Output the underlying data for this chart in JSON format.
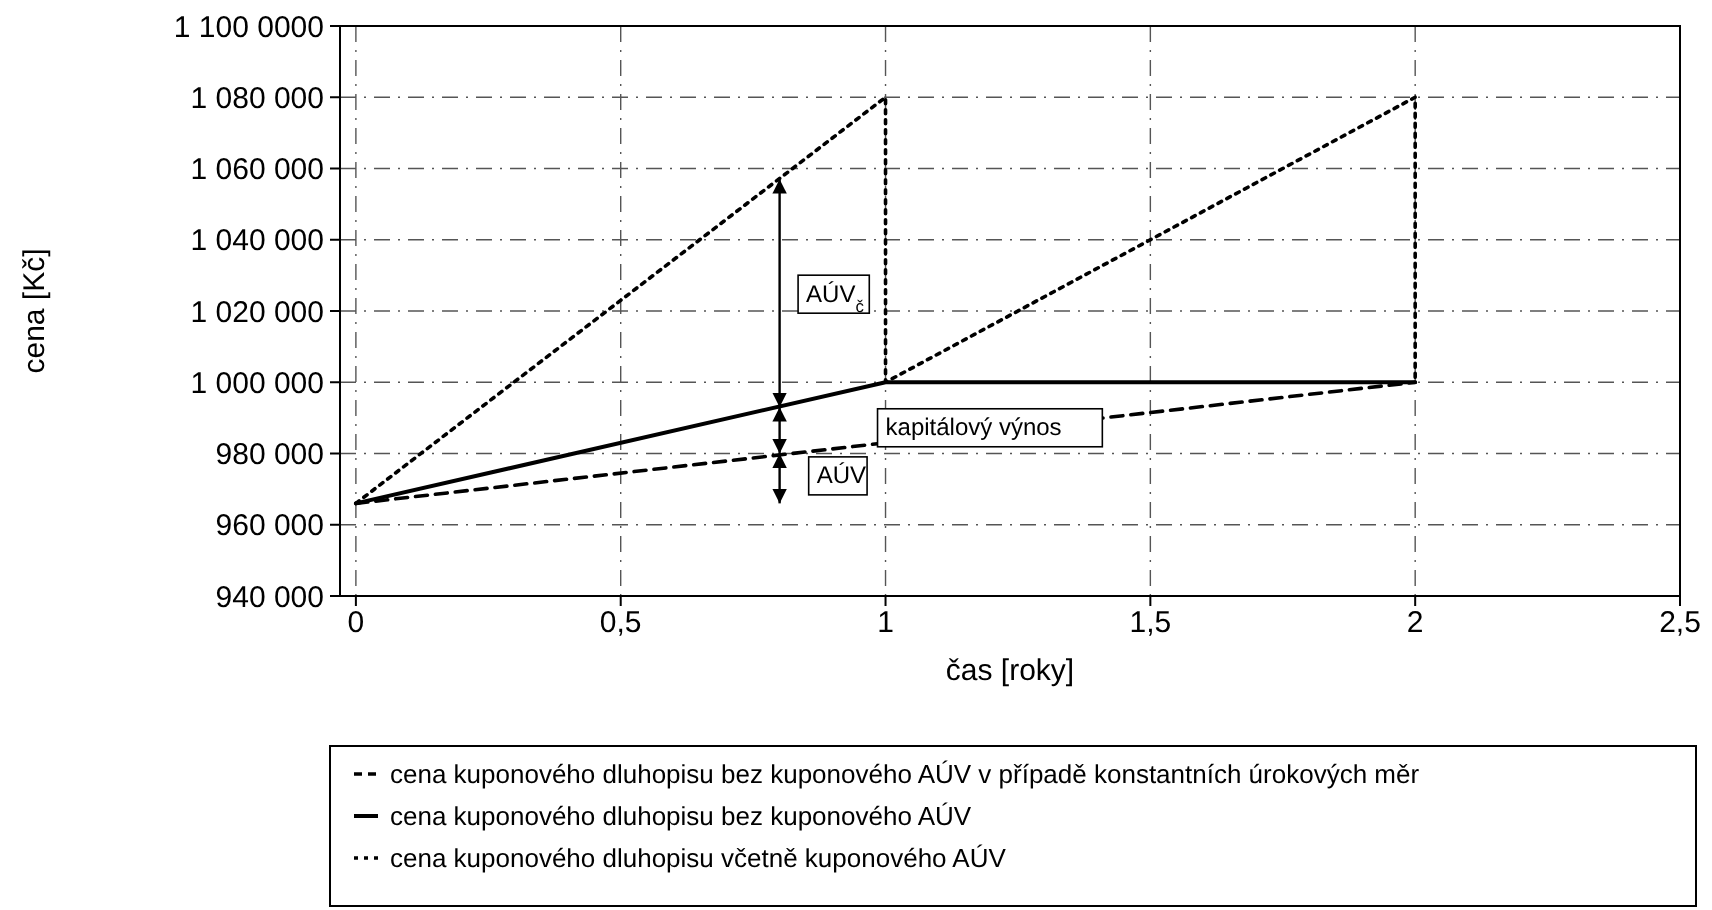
{
  "chart_data": {
    "type": "line",
    "xlabel": "čas [roky]",
    "ylabel": "cena [Kč]",
    "xlim": [
      -0.03,
      2.5
    ],
    "ylim": [
      940000,
      1100000
    ],
    "xticks": [
      {
        "value": 0,
        "label": "0"
      },
      {
        "value": 0.5,
        "label": "0,5"
      },
      {
        "value": 1,
        "label": "1"
      },
      {
        "value": 1.5,
        "label": "1,5"
      },
      {
        "value": 2,
        "label": "2"
      },
      {
        "value": 2.5,
        "label": "2,5"
      }
    ],
    "yticks": [
      {
        "value": 940000,
        "label": "940 000"
      },
      {
        "value": 960000,
        "label": "960 000"
      },
      {
        "value": 980000,
        "label": "980 000"
      },
      {
        "value": 1000000,
        "label": "1 000 000"
      },
      {
        "value": 1020000,
        "label": "1 020 000"
      },
      {
        "value": 1040000,
        "label": "1 040 000"
      },
      {
        "value": 1060000,
        "label": "1 060 000"
      },
      {
        "value": 1080000,
        "label": "1 080 000"
      },
      {
        "value": 1100000,
        "label": "1 100 0000"
      }
    ],
    "grid": true,
    "legend": "bottom",
    "series": [
      {
        "name": "cena kuponového dluhopisu bez kuponového AÚV v případě konstantních úrokových měr",
        "color": "#000000",
        "line_style": "dashed",
        "x": [
          0,
          2
        ],
        "values": [
          966000,
          1000000
        ]
      },
      {
        "name": "cena kuponového dluhopisu bez kuponového AÚV",
        "color": "#000000",
        "line_style": "solid",
        "x": [
          0,
          1,
          2
        ],
        "values": [
          966000,
          1000000,
          1000000
        ]
      },
      {
        "name": "cena kuponového dluhopisu včetně kuponového AÚV",
        "color": "#000000",
        "line_style": "dotted",
        "x": [
          0,
          1,
          1,
          2,
          2
        ],
        "values": [
          966000,
          1080000,
          1000000,
          1080000,
          1000000
        ]
      }
    ],
    "annotations": [
      "AÚV$_{č}$",
      "kapitálový výnos",
      "AÚV"
    ]
  }
}
